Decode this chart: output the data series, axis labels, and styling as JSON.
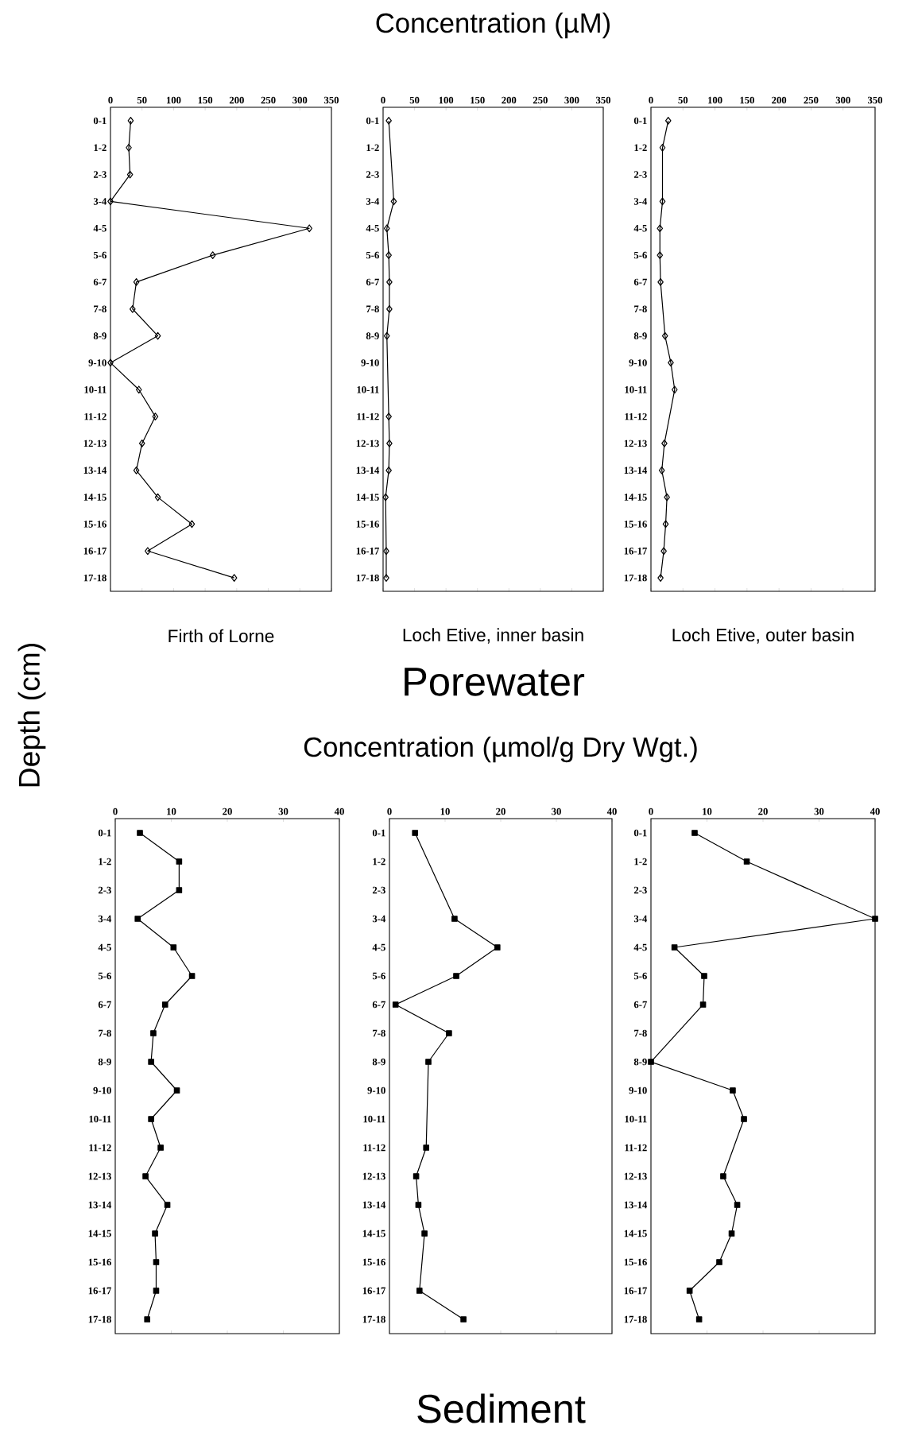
{
  "chart_data": [
    {
      "type": "line",
      "orientation": "horizontal",
      "ylabel": "Depth (cm)",
      "xlabel": "Firth of Lorne",
      "marker": "diamond",
      "color": "#000000",
      "categories": [
        "0-1",
        "1-2",
        "2-3",
        "3-4",
        "4-5",
        "5-6",
        "6-7",
        "7-8",
        "8-9",
        "9-10",
        "10-11",
        "11-12",
        "12-13",
        "13-14",
        "14-15",
        "15-16",
        "16-17",
        "17-18"
      ],
      "values": [
        32,
        29,
        31,
        0,
        315,
        162,
        41,
        35,
        75,
        0,
        45,
        71,
        50,
        41,
        75,
        129,
        59,
        196
      ],
      "xlim": [
        0,
        350
      ],
      "xticks": [
        0,
        50,
        100,
        150,
        200,
        250,
        300,
        350
      ]
    },
    {
      "type": "line",
      "orientation": "horizontal",
      "title": "Concentration  (µM)",
      "xlabel": "Loch Etive, inner basin",
      "annotations": [
        "Porewater"
      ],
      "marker": "diamond",
      "color": "#000000",
      "categories": [
        "0-1",
        "1-2",
        "2-3",
        "3-4",
        "4-5",
        "5-6",
        "6-7",
        "7-8",
        "8-9",
        "9-10",
        "10-11",
        "11-12",
        "12-13",
        "13-14",
        "14-15",
        "15-16",
        "16-17",
        "17-18"
      ],
      "values": [
        9,
        null,
        null,
        17,
        6,
        9,
        10,
        10,
        6,
        null,
        null,
        9,
        10,
        9,
        4,
        null,
        5,
        5
      ],
      "xlim": [
        0,
        350
      ],
      "xticks": [
        0,
        50,
        100,
        150,
        200,
        250,
        300,
        350
      ]
    },
    {
      "type": "line",
      "orientation": "horizontal",
      "xlabel": "Loch Etive, outer basin",
      "marker": "diamond",
      "color": "#000000",
      "categories": [
        "0-1",
        "1-2",
        "2-3",
        "3-4",
        "4-5",
        "5-6",
        "6-7",
        "7-8",
        "8-9",
        "9-10",
        "10-11",
        "11-12",
        "12-13",
        "13-14",
        "14-15",
        "15-16",
        "16-17",
        "17-18"
      ],
      "values": [
        27,
        18,
        null,
        18,
        14,
        14,
        15,
        null,
        22,
        31,
        37,
        null,
        21,
        17,
        25,
        23,
        20,
        15
      ],
      "xlim": [
        0,
        350
      ],
      "xticks": [
        0,
        50,
        100,
        150,
        200,
        250,
        300,
        350
      ]
    },
    {
      "type": "line",
      "orientation": "horizontal",
      "marker": "square",
      "color": "#000000",
      "categories": [
        "0-1",
        "1-2",
        "2-3",
        "3-4",
        "4-5",
        "5-6",
        "6-7",
        "7-8",
        "8-9",
        "9-10",
        "10-11",
        "11-12",
        "12-13",
        "13-14",
        "14-15",
        "15-16",
        "16-17",
        "17-18"
      ],
      "values": [
        4.4,
        11.4,
        11.4,
        4.0,
        10.4,
        13.7,
        8.9,
        6.8,
        6.4,
        11.0,
        6.4,
        8.1,
        5.4,
        9.3,
        7.1,
        7.3,
        7.3,
        5.7
      ],
      "xlim": [
        0,
        40
      ],
      "xticks": [
        0,
        10,
        20,
        30,
        40
      ]
    },
    {
      "type": "line",
      "orientation": "horizontal",
      "title": "Concentration  (µmol/g Dry Wgt.)",
      "annotations": [
        "Sediment"
      ],
      "marker": "square",
      "color": "#000000",
      "categories": [
        "0-1",
        "1-2",
        "2-3",
        "3-4",
        "4-5",
        "5-6",
        "6-7",
        "7-8",
        "8-9",
        "9-10",
        "10-11",
        "11-12",
        "12-13",
        "13-14",
        "14-15",
        "15-16",
        "16-17",
        "17-18"
      ],
      "values": [
        4.6,
        null,
        null,
        11.7,
        19.4,
        12.0,
        1.1,
        10.7,
        7.0,
        null,
        null,
        6.6,
        4.8,
        5.2,
        6.3,
        null,
        5.4,
        13.3
      ],
      "xlim": [
        0,
        40
      ],
      "xticks": [
        0,
        10,
        20,
        30,
        40
      ]
    },
    {
      "type": "line",
      "orientation": "horizontal",
      "marker": "square",
      "color": "#000000",
      "categories": [
        "0-1",
        "1-2",
        "2-3",
        "3-4",
        "4-5",
        "5-6",
        "6-7",
        "7-8",
        "8-9",
        "9-10",
        "10-11",
        "11-12",
        "12-13",
        "13-14",
        "14-15",
        "15-16",
        "16-17",
        "17-18"
      ],
      "values": [
        7.8,
        17.1,
        null,
        40,
        4.2,
        9.5,
        9.3,
        null,
        0,
        14.6,
        16.6,
        null,
        12.9,
        15.4,
        14.4,
        12.2,
        6.9,
        8.6
      ],
      "xlim": [
        0,
        40
      ],
      "xticks": [
        0,
        10,
        20,
        30,
        40
      ]
    }
  ]
}
